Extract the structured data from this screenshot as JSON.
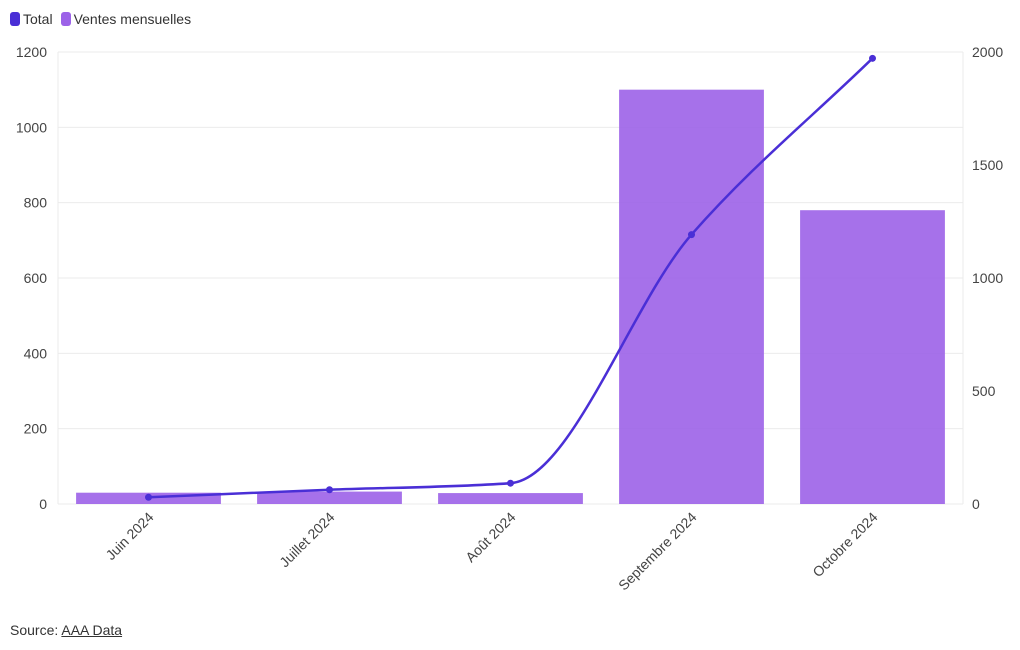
{
  "legend": {
    "total_label": "Total",
    "monthly_label": "Ventes mensuelles"
  },
  "source": {
    "prefix": "Source: ",
    "link_text": "AAA Data"
  },
  "colors": {
    "total": "#4a2fd6",
    "monthly": "#9c62e8",
    "grid": "#ebebeb"
  },
  "chart_data": {
    "type": "bar",
    "categories": [
      "Juin 2024",
      "Juillet 2024",
      "Août 2024",
      "Septembre 2024",
      "Octobre 2024"
    ],
    "series": [
      {
        "name": "Ventes mensuelles",
        "type": "bar",
        "axis": "left",
        "values": [
          30,
          33,
          29,
          1100,
          780
        ]
      },
      {
        "name": "Total",
        "type": "line",
        "axis": "right",
        "values": [
          30,
          63,
          92,
          1192,
          1972
        ]
      }
    ],
    "y_left": {
      "min": 0,
      "max": 1200,
      "ticks": [
        0,
        200,
        400,
        600,
        800,
        1000,
        1200
      ]
    },
    "y_right": {
      "min": 0,
      "max": 2000,
      "ticks": [
        0,
        500,
        1000,
        1500,
        2000
      ]
    },
    "grid": true,
    "legend_position": "top-left"
  }
}
